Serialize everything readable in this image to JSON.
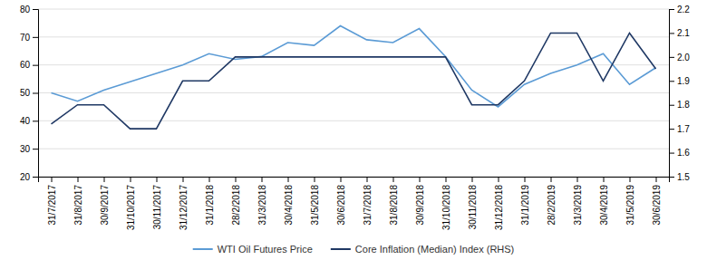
{
  "chart_data": {
    "type": "line",
    "categories": [
      "31/7/2017",
      "31/8/2017",
      "30/9/2017",
      "31/10/2017",
      "30/11/2017",
      "31/12/2017",
      "31/1/2018",
      "28/2/2018",
      "31/3/2018",
      "30/4/2018",
      "31/5/2018",
      "30/6/2018",
      "31/7/2018",
      "31/8/2018",
      "30/9/2018",
      "31/10/2018",
      "30/11/2018",
      "31/12/2018",
      "31/1/2019",
      "28/2/2019",
      "31/3/2019",
      "30/4/2019",
      "31/5/2019",
      "30/6/2019"
    ],
    "series": [
      {
        "name": "WTI Oil Futures Price",
        "color": "#5B9BD5",
        "axis": "y",
        "values": [
          50,
          47,
          51,
          54,
          57,
          60,
          64,
          62,
          63,
          68,
          67,
          74,
          69,
          68,
          73,
          63,
          51,
          45,
          53,
          57,
          60,
          64,
          53,
          59
        ]
      },
      {
        "name": "Core Inflation (Median) Index  (RHS)",
        "color": "#1F3864",
        "axis": "y2",
        "values": [
          1.72,
          1.8,
          1.8,
          1.7,
          1.7,
          1.9,
          1.9,
          2.0,
          2.0,
          2.0,
          2.0,
          2.0,
          2.0,
          2.0,
          2.0,
          2.0,
          1.8,
          1.8,
          1.9,
          2.1,
          2.1,
          1.9,
          2.1,
          1.95
        ]
      }
    ],
    "ylim": [
      20,
      80
    ],
    "yticks": [
      20,
      30,
      40,
      50,
      60,
      70,
      80
    ],
    "y2lim": [
      1.5,
      2.2
    ],
    "y2ticks": [
      1.5,
      1.6,
      1.7,
      1.8,
      1.9,
      {
        "value": 2.0,
        "label": "2.0"
      },
      2.1,
      2.2
    ],
    "grid": true,
    "legend": "bottom"
  }
}
